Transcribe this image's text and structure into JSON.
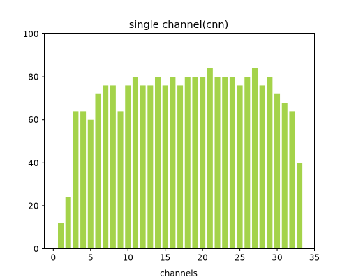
{
  "chart_data": {
    "type": "bar",
    "title": "single channel(cnn)",
    "xlabel": "channels",
    "ylabel": "",
    "x": [
      1,
      2,
      3,
      4,
      5,
      6,
      7,
      8,
      9,
      10,
      11,
      12,
      13,
      14,
      15,
      16,
      17,
      18,
      19,
      20,
      21,
      22,
      23,
      24,
      25,
      26,
      27,
      28,
      29,
      30,
      31,
      32,
      33
    ],
    "values": [
      12,
      24,
      64,
      64,
      60,
      72,
      76,
      76,
      64,
      76,
      80,
      76,
      76,
      80,
      76,
      80,
      76,
      80,
      80,
      80,
      84,
      80,
      80,
      80,
      76,
      80,
      84,
      76,
      80,
      72,
      68,
      64,
      40
    ],
    "xlim": [
      -1.2,
      35
    ],
    "ylim": [
      0,
      100
    ],
    "xticks": [
      0,
      5,
      10,
      15,
      20,
      25,
      30,
      35
    ],
    "yticks": [
      0,
      20,
      40,
      60,
      80,
      100
    ],
    "bar_color": "#a4d34a",
    "grid": false,
    "legend": "none"
  }
}
